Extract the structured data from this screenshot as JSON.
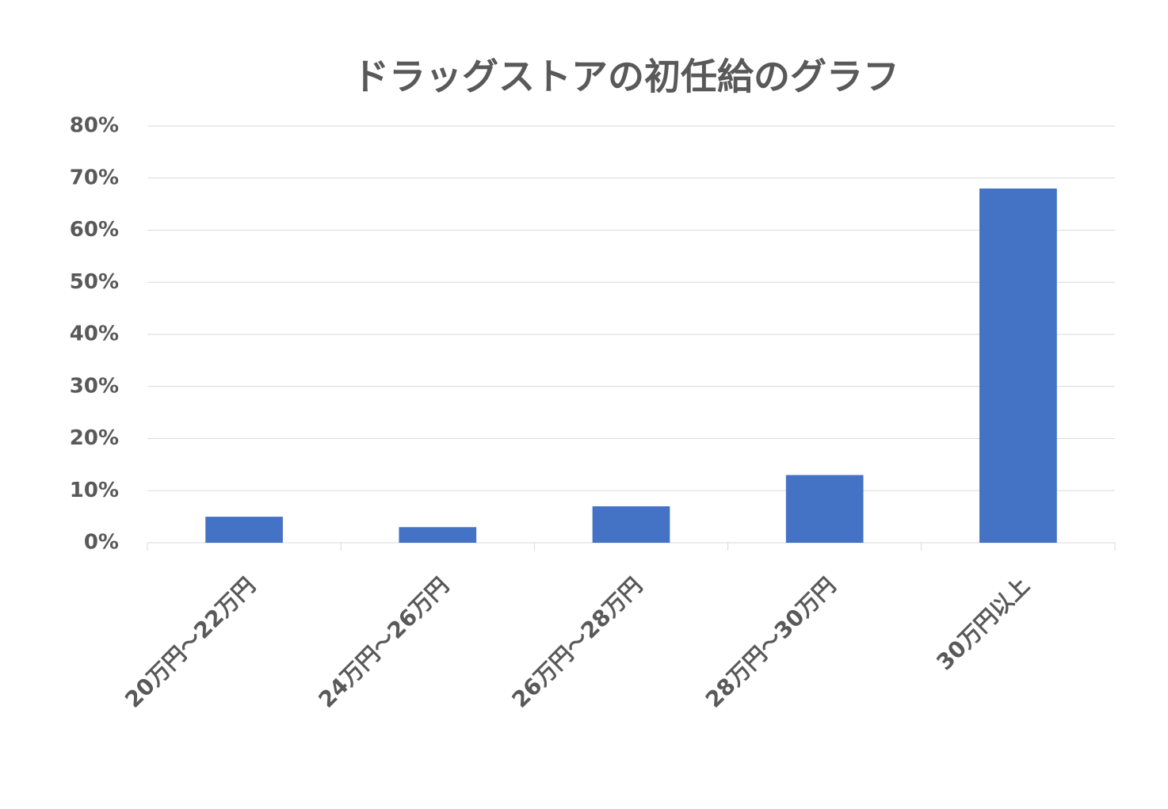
{
  "chart_data": {
    "type": "bar",
    "title": "ドラッグストアの初任給のグラフ",
    "categories": [
      "20万円～22万円",
      "24万円～26万円",
      "26万円～28万円",
      "28万円～30万円",
      "30万円以上"
    ],
    "values": [
      5,
      3,
      7,
      13,
      68
    ],
    "color": "#4472c4",
    "ylim": [
      0,
      80
    ],
    "yticks": [
      {
        "value": 0,
        "label": "0%"
      },
      {
        "value": 10,
        "label": "10%"
      },
      {
        "value": 20,
        "label": "20%"
      },
      {
        "value": 30,
        "label": "30%"
      },
      {
        "value": 40,
        "label": "40%"
      },
      {
        "value": 50,
        "label": "50%"
      },
      {
        "value": 60,
        "label": "60%"
      },
      {
        "value": 70,
        "label": "70%"
      },
      {
        "value": 80,
        "label": "80%"
      }
    ],
    "grid": true
  }
}
